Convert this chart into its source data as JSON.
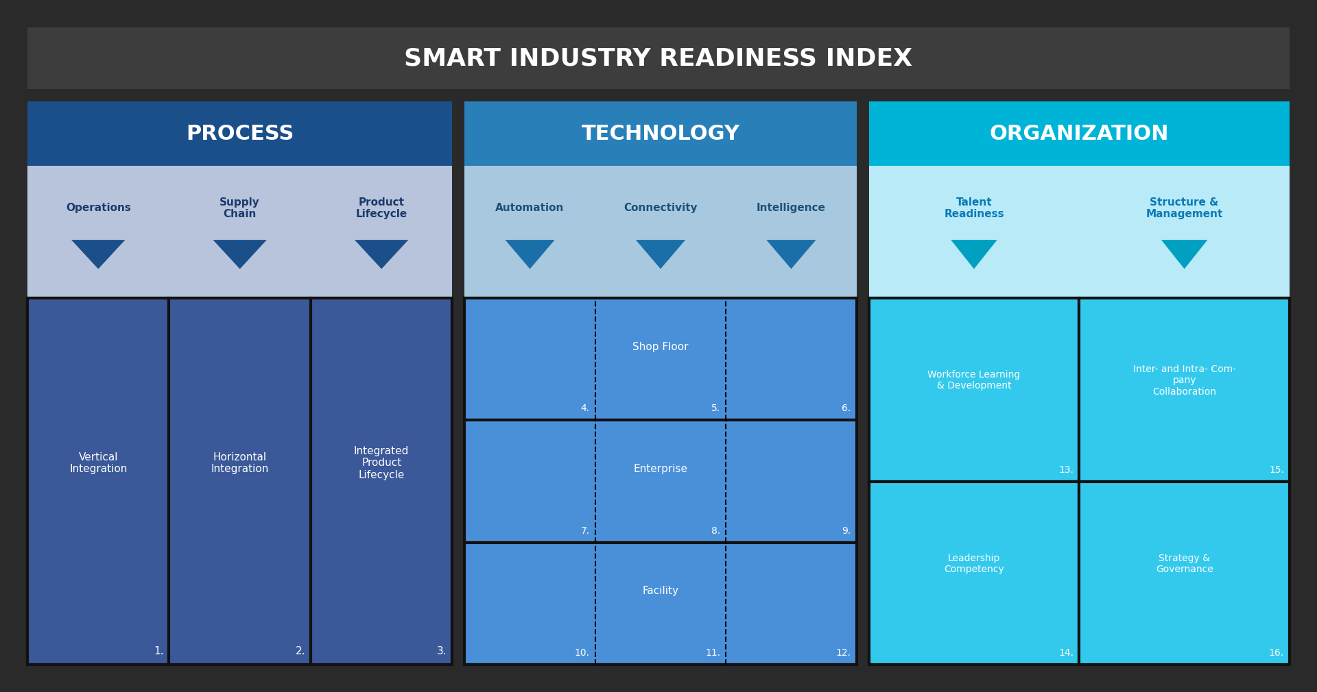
{
  "title": "SMART INDUSTRY READINESS INDEX",
  "title_bg": "#3d3d3d",
  "title_color": "#ffffff",
  "outer_bg": "#2a2a2a",
  "content_bg": "#ffffff",
  "process_header_color": "#1b4f8a",
  "process_subhdr_color": "#b8c4dc",
  "process_bottom_color": "#3b5998",
  "process_divider_color": "#111111",
  "tech_header_color": "#2980b9",
  "tech_subhdr_color": "#a8c8e0",
  "tech_bottom_color": "#4a90d9",
  "tech_divider_color": "#111111",
  "org_header_color": "#00b4d8",
  "org_subhdr_color": "#b8eaf8",
  "org_bottom_color": "#33c9ed",
  "org_divider_color": "#111111",
  "arrow_color_process": "#1b4f8a",
  "arrow_color_tech": "#1b6fa8",
  "arrow_color_org": "#00a0c0",
  "title_text": "SMART INDUSTRY READINESS INDEX",
  "process_subcats": [
    "Operations",
    "Supply\nChain",
    "Product\nLifecycle"
  ],
  "process_items": [
    "Vertical\nIntegration",
    "Horizontal\nIntegration",
    "Integrated\nProduct\nLifecycle"
  ],
  "process_nums": [
    "1.",
    "2.",
    "3."
  ],
  "tech_subcats": [
    "Automation",
    "Connectivity",
    "Intelligence"
  ],
  "tech_items": [
    "Shop Floor",
    "Enterprise",
    "Facility"
  ],
  "tech_nums_l": [
    "4.",
    "7.",
    "10."
  ],
  "tech_nums_m": [
    "5.",
    "8.",
    "11."
  ],
  "tech_nums_r": [
    "6.",
    "9.",
    "12."
  ],
  "org_subcats": [
    "Talent\nReadiness",
    "Structure &\nManagement"
  ],
  "org_items_top": [
    "Workforce Learning\n& Development",
    "Inter- and Intra- Com-\npany\nCollaboration"
  ],
  "org_items_bot": [
    "Leadership\nCompetency",
    "Strategy &\nGovernance"
  ],
  "org_nums": [
    [
      "13.",
      "15."
    ],
    [
      "14.",
      "16."
    ]
  ]
}
